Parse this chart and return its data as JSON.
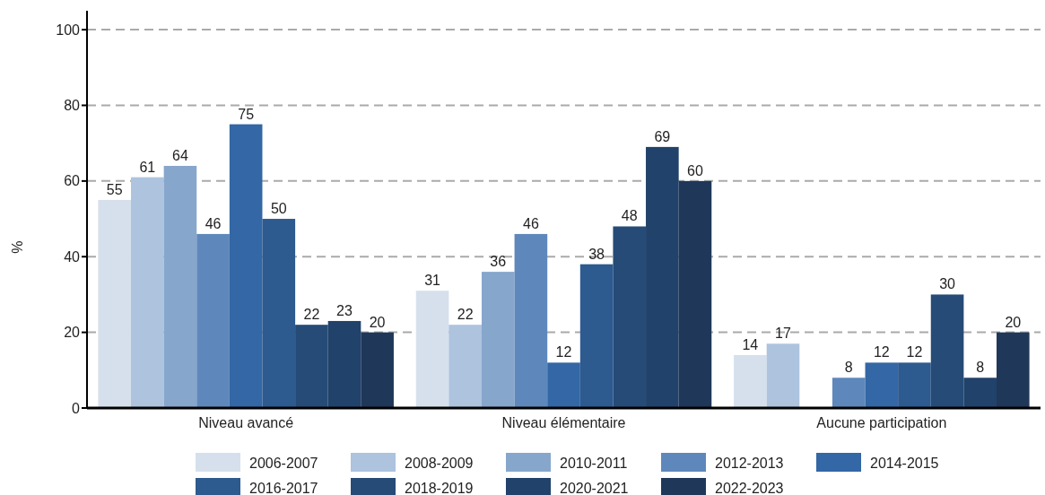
{
  "chart_data": {
    "type": "bar",
    "ylabel": "%",
    "categories": [
      "Niveau avancé",
      "Niveau élémentaire",
      "Aucune participation"
    ],
    "series": [
      {
        "name": "2006-2007",
        "color": "#d6e0ed",
        "values": [
          55,
          31,
          14
        ]
      },
      {
        "name": "2008-2009",
        "color": "#adc3de",
        "values": [
          61,
          22,
          17
        ]
      },
      {
        "name": "2010-2011",
        "color": "#87a6cc",
        "values": [
          64,
          36,
          null
        ]
      },
      {
        "name": "2012-2013",
        "color": "#5e88bb",
        "values": [
          46,
          46,
          8
        ]
      },
      {
        "name": "2014-2015",
        "color": "#3367a5",
        "values": [
          75,
          12,
          12
        ]
      },
      {
        "name": "2016-2017",
        "color": "#2d5a8f",
        "values": [
          50,
          38,
          12
        ]
      },
      {
        "name": "2018-2019",
        "color": "#264b77",
        "values": [
          22,
          48,
          30
        ]
      },
      {
        "name": "2020-2021",
        "color": "#21426a",
        "values": [
          23,
          69,
          8
        ]
      },
      {
        "name": "2022-2023",
        "color": "#1f3759",
        "values": [
          20,
          60,
          20
        ]
      }
    ],
    "ylim": [
      0,
      105
    ],
    "yticks": [
      0,
      20,
      40,
      60,
      80,
      100
    ],
    "grid": "y",
    "legend": "bottom",
    "data_labels": true
  }
}
